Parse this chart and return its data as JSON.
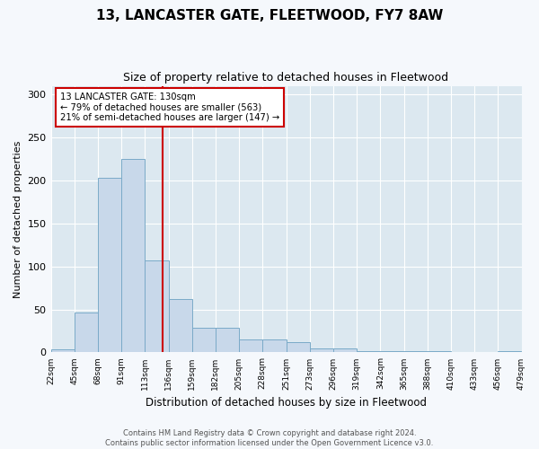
{
  "title": "13, LANCASTER GATE, FLEETWOOD, FY7 8AW",
  "subtitle": "Size of property relative to detached houses in Fleetwood",
  "xlabel": "Distribution of detached houses by size in Fleetwood",
  "ylabel": "Number of detached properties",
  "bar_color": "#c8d8ea",
  "bar_edge_color": "#7aaac8",
  "plot_bg_color": "#dce8f0",
  "fig_bg_color": "#f5f8fc",
  "bin_labels": [
    "22sqm",
    "45sqm",
    "68sqm",
    "91sqm",
    "113sqm",
    "136sqm",
    "159sqm",
    "182sqm",
    "205sqm",
    "228sqm",
    "251sqm",
    "273sqm",
    "296sqm",
    "319sqm",
    "342sqm",
    "365sqm",
    "388sqm",
    "410sqm",
    "433sqm",
    "456sqm",
    "479sqm"
  ],
  "bar_values": [
    4,
    46,
    203,
    225,
    107,
    62,
    29,
    29,
    15,
    15,
    12,
    5,
    5,
    1,
    1,
    1,
    1,
    0,
    0,
    2
  ],
  "ylim": [
    0,
    310
  ],
  "yticks": [
    0,
    50,
    100,
    150,
    200,
    250,
    300
  ],
  "property_line_x": 4.74,
  "annotation_text": "13 LANCASTER GATE: 130sqm\n← 79% of detached houses are smaller (563)\n21% of semi-detached houses are larger (147) →",
  "annotation_box_color": "#ffffff",
  "annotation_box_edge_color": "#cc0000",
  "footer_text": "Contains HM Land Registry data © Crown copyright and database right 2024.\nContains public sector information licensed under the Open Government Licence v3.0.",
  "grid_color": "#ffffff",
  "num_bins": 20
}
